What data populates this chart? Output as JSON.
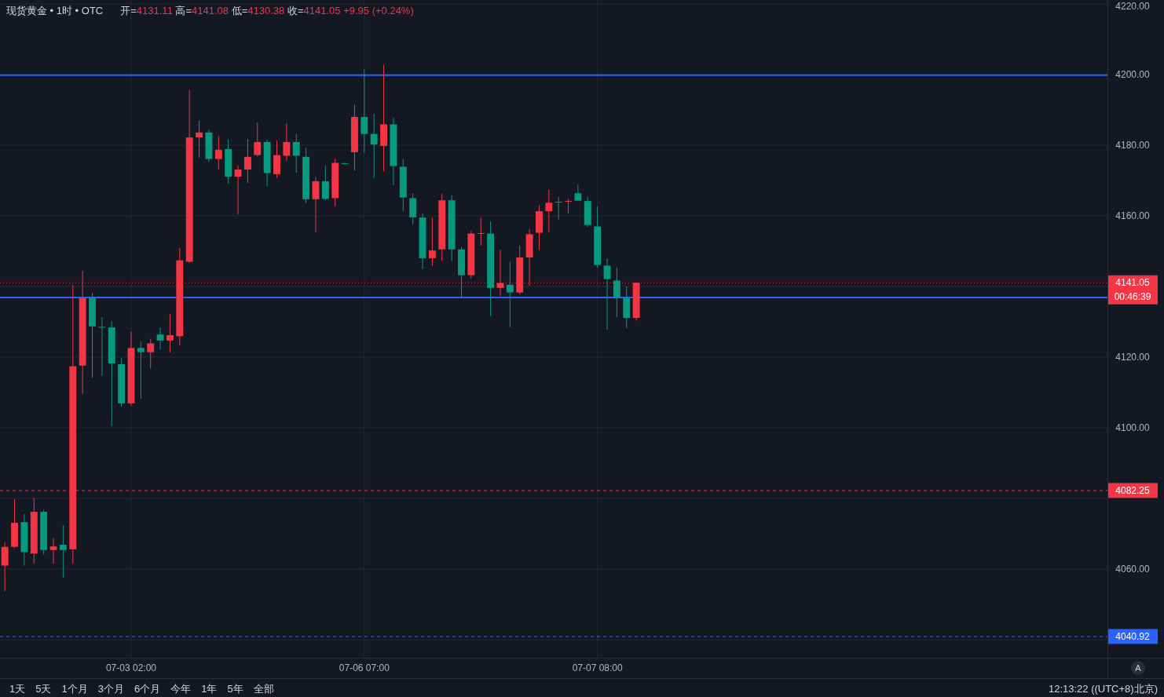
{
  "chart_data": {
    "type": "candlestick",
    "title": "现货黄金 • 1时 • OTC",
    "subtitle": "开=4131.11 高=4141.08 低=4130.38 收=4141.05 +9.95 (+0.24%)",
    "categories": [
      null,
      null,
      null,
      null,
      null,
      null,
      null,
      null,
      null,
      null,
      null,
      null,
      null,
      "07-03 02:00",
      null,
      null,
      null,
      null,
      null,
      null,
      null,
      null,
      null,
      null,
      null,
      null,
      null,
      null,
      null,
      null,
      null,
      null,
      null,
      null,
      null,
      null,
      null,
      "07-06 07:00",
      null,
      null,
      null,
      null,
      null,
      null,
      null,
      null,
      null,
      null,
      null,
      null,
      null,
      null,
      null,
      null,
      null,
      null,
      null,
      null,
      null,
      null,
      null,
      "07-07 08:00",
      null,
      null,
      null,
      null,
      null,
      null,
      null,
      null,
      null,
      null,
      null,
      null,
      null,
      null,
      null,
      null,
      null,
      null,
      null,
      null,
      null,
      null,
      null,
      null,
      null,
      null,
      null,
      null,
      null,
      null,
      null,
      null,
      null,
      null,
      null,
      null,
      null,
      null,
      null,
      null,
      null,
      null,
      null,
      null,
      null,
      null,
      null,
      null,
      null,
      null,
      null,
      null
    ],
    "ohlc": [
      [
        4061.0,
        4067.6,
        4053.7,
        4066.3
      ],
      [
        4066.3,
        4079.8,
        4066.0,
        4073.1
      ],
      [
        4073.3,
        4075.6,
        4061.0,
        4064.8
      ],
      [
        4064.4,
        4080.2,
        4061.5,
        4076.2
      ],
      [
        4076.2,
        4076.8,
        4064.1,
        4065.4
      ],
      [
        4065.4,
        4068.7,
        4061.5,
        4066.4
      ],
      [
        4066.9,
        4072.4,
        4057.6,
        4065.4
      ],
      [
        4065.6,
        4140.4,
        4061.5,
        4117.4
      ],
      [
        4117.6,
        4144.4,
        4109.6,
        4136.7
      ],
      [
        4136.7,
        4138.2,
        4114.1,
        4128.7
      ],
      [
        4128.6,
        4131.3,
        4114.8,
        4128.4
      ],
      [
        4128.4,
        4130.2,
        4100.5,
        4118.2
      ],
      [
        4118.0,
        4119.8,
        4105.9,
        4106.9
      ],
      [
        4106.9,
        4127.2,
        4106.2,
        4122.6
      ],
      [
        4122.6,
        4124.4,
        4108.2,
        4121.4
      ],
      [
        4121.4,
        4125.2,
        4116.7,
        4123.9
      ],
      [
        4126.4,
        4128.4,
        4122.2,
        4124.7
      ],
      [
        4124.7,
        4132.2,
        4121.3,
        4126.2
      ],
      [
        4125.9,
        4150.9,
        4123.3,
        4147.4
      ],
      [
        4147.0,
        4195.6,
        4146.7,
        4182.2
      ],
      [
        4182.2,
        4186.9,
        4176.5,
        4183.6
      ],
      [
        4183.6,
        4184.4,
        4175.3,
        4176.1
      ],
      [
        4176.1,
        4182.6,
        4173.1,
        4178.7
      ],
      [
        4178.9,
        4181.7,
        4169.1,
        4171.1
      ],
      [
        4171.1,
        4174.3,
        4160.4,
        4173.1
      ],
      [
        4173.1,
        4181.7,
        4169.3,
        4176.7
      ],
      [
        4177.2,
        4186.4,
        4176.8,
        4180.9
      ],
      [
        4180.9,
        4181.6,
        4168.4,
        4172.1
      ],
      [
        4171.8,
        4181.3,
        4170.7,
        4177.2
      ],
      [
        4177.0,
        4186.2,
        4175.6,
        4180.9
      ],
      [
        4180.9,
        4183.2,
        4172.2,
        4177.0
      ],
      [
        4176.7,
        4179.3,
        4163.7,
        4164.7
      ],
      [
        4164.7,
        4171.0,
        4155.3,
        4169.8
      ],
      [
        4169.8,
        4174.3,
        4164.4,
        4164.8
      ],
      [
        4165.0,
        4176.2,
        4162.7,
        4175.0
      ],
      [
        4174.9,
        4175.0,
        4174.6,
        4174.7
      ],
      [
        4178.0,
        4191.5,
        4172.8,
        4188.0
      ],
      [
        4188.0,
        4201.5,
        4177.8,
        4183.2
      ],
      [
        4183.2,
        4188.9,
        4170.7,
        4180.2
      ],
      [
        4179.8,
        4202.7,
        4172.6,
        4185.9
      ],
      [
        4185.9,
        4187.8,
        4168.7,
        4174.1
      ],
      [
        4173.9,
        4176.1,
        4161.3,
        4165.2
      ],
      [
        4165.0,
        4166.4,
        4157.6,
        4159.6
      ],
      [
        4159.5,
        4160.7,
        4145.0,
        4148.0
      ],
      [
        4148.0,
        4159.5,
        4145.7,
        4150.2
      ],
      [
        4150.5,
        4166.2,
        4147.2,
        4164.4
      ],
      [
        4164.4,
        4165.9,
        4147.2,
        4150.5
      ],
      [
        4150.5,
        4151.1,
        4136.8,
        4143.2
      ],
      [
        4143.2,
        4155.8,
        4142.2,
        4155.0
      ],
      [
        4154.9,
        4159.5,
        4151.6,
        4155.1
      ],
      [
        4155.0,
        4158.4,
        4131.6,
        4139.6
      ],
      [
        4139.6,
        4150.4,
        4137.3,
        4141.0
      ],
      [
        4140.5,
        4147.0,
        4128.5,
        4138.3
      ],
      [
        4138.3,
        4151.6,
        4137.8,
        4148.2
      ],
      [
        4148.2,
        4156.3,
        4140.2,
        4154.8
      ],
      [
        4155.2,
        4163.0,
        4150.4,
        4161.3
      ],
      [
        4161.3,
        4167.4,
        4155.3,
        4163.7
      ],
      [
        4164.0,
        4165.4,
        4158.9,
        4163.8
      ],
      [
        4164.0,
        4164.8,
        4160.7,
        4164.2
      ],
      [
        4166.4,
        4168.9,
        4164.2,
        4164.3
      ],
      [
        4164.2,
        4165.4,
        4156.8,
        4157.4
      ],
      [
        4157.0,
        4162.7,
        4145.4,
        4146.1
      ],
      [
        4145.9,
        4147.9,
        4127.8,
        4142.1
      ],
      [
        4141.7,
        4145.4,
        4131.3,
        4136.8
      ],
      [
        4136.7,
        4140.0,
        4128.2,
        4131.1
      ],
      [
        4131.11,
        4141.08,
        4130.38,
        4141.05
      ],
      null,
      null,
      null,
      null,
      null,
      null,
      null,
      null,
      null,
      null,
      null,
      null,
      null,
      null,
      null,
      null,
      null,
      null,
      null,
      null,
      null,
      null,
      null,
      null,
      null,
      null,
      null,
      null,
      null,
      null,
      null,
      null,
      null,
      null,
      null,
      null,
      null,
      null,
      null,
      null,
      null,
      null,
      null,
      null,
      null,
      null,
      null,
      null
    ],
    "colors": [
      "#f23645",
      "#f23645",
      "#089981",
      "#f23645",
      "#089981",
      "#f23645",
      "#089981",
      "#f23645",
      "#f23645",
      "#089981",
      "#089981",
      "#089981",
      "#089981",
      "#f23645",
      "#089981",
      "#f23645",
      "#089981",
      "#f23645",
      "#f23645",
      "#f23645",
      "#f23645",
      "#089981",
      "#f23645",
      "#089981",
      "#f23645",
      "#f23645",
      "#f23645",
      "#089981",
      "#f23645",
      "#f23645",
      "#089981",
      "#089981",
      "#f23645",
      "#089981",
      "#f23645",
      "#089981",
      "#f23645",
      "#089981",
      "#089981",
      "#f23645",
      "#089981",
      "#089981",
      "#089981",
      "#089981",
      "#f23645",
      "#f23645",
      "#089981",
      "#089981",
      "#f23645",
      "#f23645",
      "#089981",
      "#f23645",
      "#089981",
      "#f23645",
      "#f23645",
      "#f23645",
      "#f23645",
      "#089981",
      "#f23645",
      "#089981",
      "#089981",
      "#089981",
      "#089981",
      "#089981",
      "#089981",
      "#f23645",
      null,
      null,
      null,
      null,
      null,
      null,
      null,
      null,
      null,
      null,
      null,
      null,
      null,
      null,
      null,
      null,
      null,
      null,
      null,
      null,
      null,
      null,
      null,
      null,
      null,
      null,
      null,
      null,
      null,
      null,
      null,
      null,
      null,
      null,
      null,
      null,
      null,
      null,
      null,
      null,
      null,
      null,
      null,
      null,
      null,
      null,
      null,
      null
    ],
    "ylim": [
      4034.9,
      4221.1
    ],
    "yticks": [
      {
        "value": 4040,
        "label": null
      },
      {
        "value": 4060,
        "label": "4060.00"
      },
      {
        "value": 4080,
        "label": null
      },
      {
        "value": 4100,
        "label": "4100.00"
      },
      {
        "value": 4120,
        "label": "4120.00"
      },
      {
        "value": 4140,
        "label": null
      },
      {
        "value": 4160,
        "label": "4160.00"
      },
      {
        "value": 4180,
        "label": "4180.00"
      },
      {
        "value": 4200,
        "label": "4200.00"
      },
      {
        "value": 4220,
        "label": "4220.00"
      }
    ],
    "grid": true,
    "ref_lines": [
      {
        "axis": "y",
        "value": 4199.8,
        "color": "#2962ff",
        "line_style": "solid"
      },
      {
        "axis": "y",
        "value": 4136.9,
        "color": "#2962ff",
        "line_style": "solid"
      },
      {
        "axis": "y",
        "value": 4141.05,
        "label": "4141.05\n00:46:39",
        "color": "#f23645",
        "line_style": "dotted"
      },
      {
        "axis": "y",
        "value": 4082.25,
        "label": "4082.25",
        "color": "#f23645",
        "line_style": "dashed"
      },
      {
        "axis": "y",
        "value": 4040.92,
        "label": "4040.92",
        "color": "#2962ff",
        "line_style": "dashed"
      }
    ],
    "annotations": [
      "1天",
      "5天",
      "1个月",
      "3个月",
      "6个月",
      "今年",
      "1年",
      "5年",
      "全部",
      "12:13:22 ((UTC+8)北京)",
      "A"
    ]
  }
}
